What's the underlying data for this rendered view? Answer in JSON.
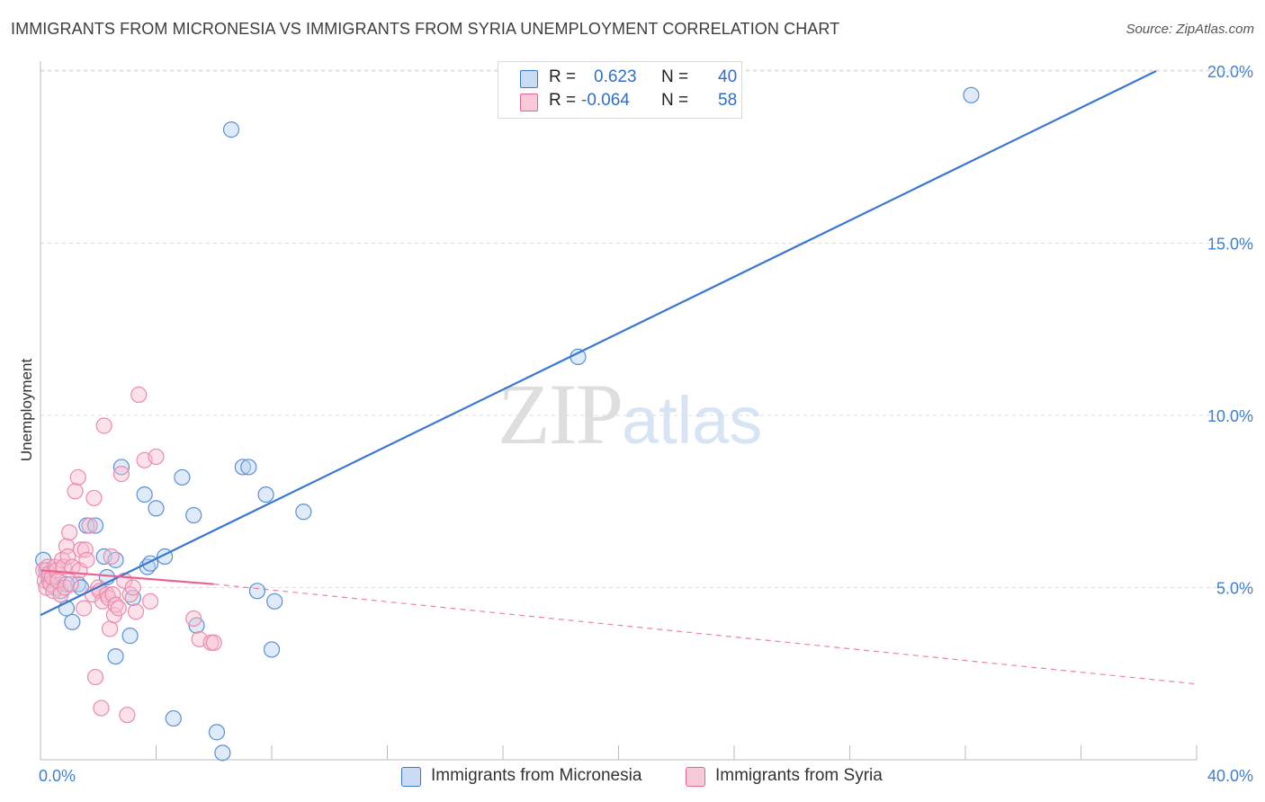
{
  "title": "IMMIGRANTS FROM MICRONESIA VS IMMIGRANTS FROM SYRIA UNEMPLOYMENT CORRELATION CHART",
  "source": "Source: ZipAtlas.com",
  "watermark": {
    "zip": "ZIP",
    "atlas": "atlas"
  },
  "colors": {
    "blue": "#3a78d0",
    "blue_fill": "#b9d2f0",
    "pink": "#e8638f",
    "pink_fill": "#f6bfd1",
    "tick": "#3f7fce"
  },
  "legend": {
    "rows": [
      {
        "r_label": "R =",
        "r_value": "0.623",
        "n_label": "N =",
        "n_value": "40"
      },
      {
        "r_label": "R =",
        "r_value": "-0.064",
        "n_label": "N =",
        "n_value": "58"
      }
    ]
  },
  "bottom_legend": [
    "Immigrants from Micronesia",
    "Immigrants from Syria"
  ],
  "chart_data": {
    "type": "scatter",
    "title": "IMMIGRANTS FROM MICRONESIA VS IMMIGRANTS FROM SYRIA UNEMPLOYMENT CORRELATION CHART",
    "xlabel": "",
    "ylabel": "Unemployment",
    "xlim": [
      0,
      40
    ],
    "ylim": [
      0,
      20.5
    ],
    "x_tick_labels": [
      "0.0%",
      "40.0%"
    ],
    "y_ticks": [
      5,
      10,
      15,
      20
    ],
    "y_tick_labels": [
      "5.0%",
      "10.0%",
      "15.0%",
      "20.0%"
    ],
    "grid": true,
    "series": [
      {
        "name": "Immigrants from Micronesia",
        "color": "#3a78d0",
        "points": [
          [
            0.1,
            5.8
          ],
          [
            0.2,
            5.5
          ],
          [
            0.3,
            5.2
          ],
          [
            0.5,
            5.0
          ],
          [
            0.7,
            4.9
          ],
          [
            0.9,
            4.4
          ],
          [
            1.1,
            4.0
          ],
          [
            1.3,
            5.1
          ],
          [
            1.6,
            6.8
          ],
          [
            1.9,
            6.8
          ],
          [
            2.2,
            5.9
          ],
          [
            2.6,
            3.0
          ],
          [
            2.6,
            5.8
          ],
          [
            2.8,
            8.5
          ],
          [
            3.1,
            3.6
          ],
          [
            3.2,
            4.7
          ],
          [
            3.6,
            7.7
          ],
          [
            3.7,
            5.6
          ],
          [
            3.8,
            5.7
          ],
          [
            4.0,
            7.3
          ],
          [
            4.3,
            5.9
          ],
          [
            4.6,
            1.2
          ],
          [
            4.9,
            8.2
          ],
          [
            5.3,
            7.1
          ],
          [
            5.4,
            3.9
          ],
          [
            6.1,
            0.8
          ],
          [
            6.3,
            0.2
          ],
          [
            6.6,
            18.3
          ],
          [
            7.0,
            8.5
          ],
          [
            7.2,
            8.5
          ],
          [
            7.5,
            4.9
          ],
          [
            7.8,
            7.7
          ],
          [
            8.0,
            3.2
          ],
          [
            8.1,
            4.6
          ],
          [
            9.1,
            7.2
          ],
          [
            18.6,
            11.7
          ],
          [
            32.2,
            19.3
          ],
          [
            2.3,
            5.3
          ],
          [
            0.9,
            5.1
          ],
          [
            1.4,
            5.0
          ]
        ],
        "trend": {
          "x": [
            0,
            38.6
          ],
          "y": [
            4.2,
            20.0
          ],
          "style": "solid"
        }
      },
      {
        "name": "Immigrants from Syria",
        "color": "#e8638f",
        "points": [
          [
            0.1,
            5.5
          ],
          [
            0.15,
            5.2
          ],
          [
            0.2,
            5.0
          ],
          [
            0.25,
            5.6
          ],
          [
            0.3,
            5.4
          ],
          [
            0.35,
            5.1
          ],
          [
            0.4,
            5.3
          ],
          [
            0.45,
            4.9
          ],
          [
            0.5,
            5.6
          ],
          [
            0.55,
            5.5
          ],
          [
            0.6,
            5.2
          ],
          [
            0.7,
            4.8
          ],
          [
            0.75,
            5.8
          ],
          [
            0.8,
            5.6
          ],
          [
            0.85,
            5.0
          ],
          [
            0.9,
            6.2
          ],
          [
            0.95,
            5.9
          ],
          [
            1.0,
            6.6
          ],
          [
            1.05,
            5.1
          ],
          [
            1.1,
            5.6
          ],
          [
            1.2,
            7.8
          ],
          [
            1.3,
            8.2
          ],
          [
            1.35,
            5.5
          ],
          [
            1.4,
            6.1
          ],
          [
            1.5,
            4.4
          ],
          [
            1.55,
            6.1
          ],
          [
            1.6,
            5.8
          ],
          [
            1.7,
            6.8
          ],
          [
            1.8,
            4.8
          ],
          [
            1.85,
            7.6
          ],
          [
            1.9,
            2.4
          ],
          [
            2.0,
            5.0
          ],
          [
            2.05,
            4.9
          ],
          [
            2.1,
            1.5
          ],
          [
            2.15,
            4.6
          ],
          [
            2.2,
            9.7
          ],
          [
            2.3,
            4.8
          ],
          [
            2.35,
            4.7
          ],
          [
            2.4,
            3.8
          ],
          [
            2.45,
            5.9
          ],
          [
            2.5,
            4.8
          ],
          [
            2.55,
            4.2
          ],
          [
            2.6,
            4.5
          ],
          [
            2.7,
            4.4
          ],
          [
            2.8,
            8.3
          ],
          [
            2.9,
            5.2
          ],
          [
            3.0,
            1.3
          ],
          [
            3.1,
            4.8
          ],
          [
            3.2,
            5.0
          ],
          [
            3.3,
            4.3
          ],
          [
            3.4,
            10.6
          ],
          [
            3.6,
            8.7
          ],
          [
            3.8,
            4.6
          ],
          [
            4.0,
            8.8
          ],
          [
            5.3,
            4.1
          ],
          [
            5.5,
            3.5
          ],
          [
            5.9,
            3.4
          ],
          [
            6.0,
            3.4
          ]
        ],
        "trend": {
          "x": [
            0,
            6.0
          ],
          "y": [
            5.5,
            5.1
          ],
          "style": "solid"
        },
        "trend_extension": {
          "x": [
            6.0,
            40.0
          ],
          "y": [
            5.1,
            2.2
          ],
          "style": "dashed"
        }
      }
    ]
  }
}
